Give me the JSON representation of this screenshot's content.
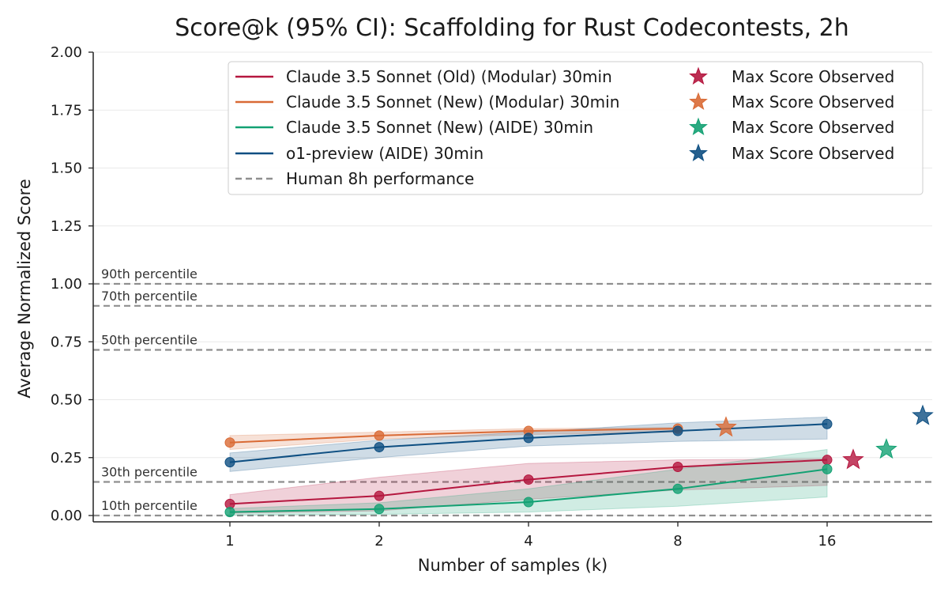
{
  "chart_data": {
    "type": "line",
    "title": "Score@k (95% CI): Scaffolding for Rust Codecontests, 2h",
    "xlabel": "Number of samples (k)",
    "ylabel": "Average Normalized Score",
    "x_scale": "log2",
    "x": [
      1,
      2,
      4,
      8,
      16
    ],
    "x_tick_labels": [
      "1",
      "2",
      "4",
      "8",
      "16"
    ],
    "ylim": [
      0,
      2
    ],
    "y_ticks": [
      0,
      0.25,
      0.5,
      0.75,
      1.0,
      1.25,
      1.5,
      1.75,
      2.0
    ],
    "y_tick_labels": [
      "0.00",
      "0.25",
      "0.50",
      "0.75",
      "1.00",
      "1.25",
      "1.50",
      "1.75",
      "2.00"
    ],
    "grid": "horizontal",
    "legend_position": "top-right",
    "series": [
      {
        "name": "Claude 3.5 Sonnet (Old) (Modular) 30min",
        "color": "#b5173f",
        "values": [
          0.05,
          0.085,
          0.155,
          0.21,
          0.24
        ],
        "ci_low": [
          0.01,
          0.02,
          0.07,
          0.11,
          0.13
        ],
        "ci_high": [
          0.09,
          0.165,
          0.225,
          0.24,
          0.245
        ],
        "max_score_observed": 0.24
      },
      {
        "name": "Claude 3.5 Sonnet (New) (Modular) 30min",
        "color": "#d96a35",
        "values": [
          0.315,
          0.345,
          0.365,
          0.375,
          null
        ],
        "ci_low": [
          0.285,
          0.33,
          0.35,
          0.36,
          null
        ],
        "ci_high": [
          0.345,
          0.36,
          0.375,
          0.38,
          null
        ],
        "max_score_observed": 0.38
      },
      {
        "name": "Claude 3.5 Sonnet (New) (AIDE) 30min",
        "color": "#13a173",
        "values": [
          0.015,
          0.028,
          0.058,
          0.115,
          0.2
        ],
        "ci_low": [
          0.002,
          0.005,
          0.015,
          0.04,
          0.08
        ],
        "ci_high": [
          0.03,
          0.055,
          0.115,
          0.2,
          0.285
        ],
        "max_score_observed": 0.285
      },
      {
        "name": "o1-preview (AIDE) 30min",
        "color": "#0e4f82",
        "values": [
          0.23,
          0.295,
          0.335,
          0.365,
          0.395
        ],
        "ci_low": [
          0.19,
          0.25,
          0.3,
          0.32,
          0.33
        ],
        "ci_high": [
          0.27,
          0.325,
          0.36,
          0.4,
          0.425
        ],
        "max_score_observed": 0.43
      }
    ],
    "max_score_legend_label": "Max Score Observed",
    "human_legend_label": "Human 8h performance",
    "human_percentiles": [
      {
        "label": "90th percentile",
        "value": 1.0
      },
      {
        "label": "70th percentile",
        "value": 0.905
      },
      {
        "label": "50th percentile",
        "value": 0.715
      },
      {
        "label": "30th percentile",
        "value": 0.145
      },
      {
        "label": "10th percentile",
        "value": 0.0
      }
    ]
  }
}
